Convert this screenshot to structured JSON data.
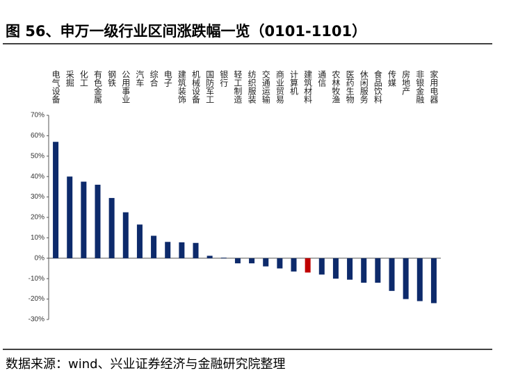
{
  "title": "图 56、申万一级行业区间涨跌幅一览（0101-1101）",
  "footer": "数据来源：wind、兴业证券经济与金融研究院整理",
  "chart_data": {
    "type": "bar",
    "categories": [
      "电气设备",
      "采掘",
      "化工",
      "有色金属",
      "钢铁",
      "公用事业",
      "汽车",
      "综合",
      "电子",
      "建筑装饰",
      "机械设备",
      "国防军工",
      "银行",
      "轻工制造",
      "纺织服装",
      "交通运输",
      "商业贸易",
      "计算机",
      "建筑材料",
      "通信",
      "农林牧渔",
      "医药生物",
      "休闲服务",
      "食品饮料",
      "传媒",
      "房地产",
      "非银金融",
      "家用电器"
    ],
    "values": [
      57,
      40,
      37.5,
      36,
      29.5,
      22.5,
      16.5,
      11,
      8,
      7.8,
      7.5,
      1.2,
      0.3,
      -2.5,
      -2.5,
      -4,
      -5,
      -6.5,
      -7,
      -8,
      -10,
      -10.5,
      -12,
      -12,
      -16,
      -20,
      -21,
      -22
    ],
    "colors": [
      "#0d2a6b",
      "#0d2a6b",
      "#0d2a6b",
      "#0d2a6b",
      "#0d2a6b",
      "#0d2a6b",
      "#0d2a6b",
      "#0d2a6b",
      "#0d2a6b",
      "#0d2a6b",
      "#0d2a6b",
      "#0d2a6b",
      "#0d2a6b",
      "#0d2a6b",
      "#0d2a6b",
      "#0d2a6b",
      "#0d2a6b",
      "#0d2a6b",
      "#c00000",
      "#0d2a6b",
      "#0d2a6b",
      "#0d2a6b",
      "#0d2a6b",
      "#0d2a6b",
      "#0d2a6b",
      "#0d2a6b",
      "#0d2a6b",
      "#0d2a6b"
    ],
    "ylim": [
      -30,
      70
    ],
    "yticks": [
      {
        "value": -30,
        "label": "-30%"
      },
      {
        "value": -20,
        "label": "-20%"
      },
      {
        "value": -10,
        "label": "-10%"
      },
      {
        "value": 0,
        "label": "0%"
      },
      {
        "value": 10,
        "label": "10%"
      },
      {
        "value": 20,
        "label": "20%"
      },
      {
        "value": 30,
        "label": "30%"
      },
      {
        "value": 40,
        "label": "40%"
      },
      {
        "value": 50,
        "label": "50%"
      },
      {
        "value": 60,
        "label": "60%"
      },
      {
        "value": 70,
        "label": "70%"
      }
    ]
  }
}
